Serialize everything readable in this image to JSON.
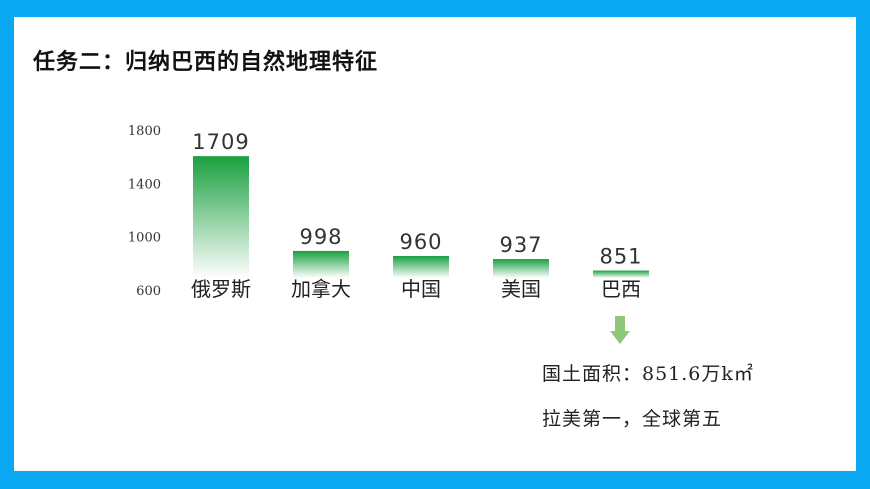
{
  "slide": {
    "title": "任务二：归纳巴西的自然地理特征",
    "border_color": "#0aa8f0"
  },
  "chart_data": {
    "type": "bar",
    "categories": [
      "俄罗斯",
      "加拿大",
      "中国",
      "美国",
      "巴西"
    ],
    "values": [
      1709,
      998,
      960,
      937,
      851
    ],
    "value_labels": [
      "1709",
      "998",
      "960",
      "937",
      "851"
    ],
    "y_ticks": [
      "1800",
      "1400",
      "1000",
      "600"
    ],
    "ylim": [
      600,
      1800
    ],
    "grid": false,
    "bar_color_top": "#1aa040",
    "bar_color_bottom": "#ffffff"
  },
  "annotations": {
    "area": "国土面积：851.6万k㎡",
    "rank": "拉美第一，全球第五",
    "arrow_icon": "down-arrow-icon",
    "arrow_color": "#8cc878"
  }
}
